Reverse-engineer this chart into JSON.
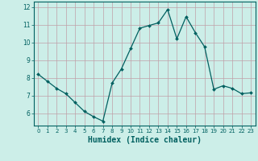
{
  "x": [
    0,
    1,
    2,
    3,
    4,
    5,
    6,
    7,
    8,
    9,
    10,
    11,
    12,
    13,
    14,
    15,
    16,
    17,
    18,
    19,
    20,
    21,
    22,
    23
  ],
  "y": [
    8.2,
    7.8,
    7.4,
    7.1,
    6.6,
    6.1,
    5.8,
    5.55,
    7.7,
    8.5,
    9.65,
    10.8,
    10.95,
    11.1,
    11.85,
    10.2,
    11.45,
    10.55,
    9.75,
    7.35,
    7.55,
    7.4,
    7.1,
    7.15
  ],
  "line_color": "#006060",
  "marker": "D",
  "marker_size": 2.0,
  "bg_color": "#cceee8",
  "grid_color": "#c0a0a8",
  "xlabel": "Humidex (Indice chaleur)",
  "xlabel_fontsize": 7,
  "xlabel_color": "#006060",
  "tick_color": "#006060",
  "ylim": [
    5.3,
    12.3
  ],
  "xlim": [
    -0.5,
    23.5
  ],
  "yticks": [
    6,
    7,
    8,
    9,
    10,
    11,
    12
  ],
  "xticks": [
    0,
    1,
    2,
    3,
    4,
    5,
    6,
    7,
    8,
    9,
    10,
    11,
    12,
    13,
    14,
    15,
    16,
    17,
    18,
    19,
    20,
    21,
    22,
    23
  ]
}
